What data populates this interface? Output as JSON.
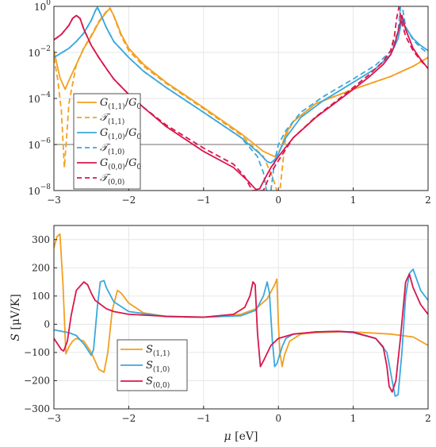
{
  "colors": {
    "orange": "#F2A01F",
    "blue": "#3AA8DE",
    "red": "#D9164C",
    "hline": "#8c8c8c",
    "grid": "#e6e6e6"
  },
  "chart_data": [
    {
      "type": "line",
      "y_scale": "log",
      "xlim": [
        -3,
        2
      ],
      "ylim": [
        1e-08,
        1
      ],
      "grid": true,
      "legend_position": "bottom-left",
      "x_ticks": [
        "−3",
        "−2",
        "−1",
        "0",
        "1",
        "2"
      ],
      "y_ticks": [
        {
          "base": "10",
          "exp": "0"
        },
        {
          "base": "10",
          "exp": "−2"
        },
        {
          "base": "10",
          "exp": "−4"
        },
        {
          "base": "10",
          "exp": "−6"
        },
        {
          "base": "10",
          "exp": "−8"
        }
      ],
      "hline": 1e-06,
      "series": [
        {
          "name": "G_{(1,1)}/G_0",
          "color": "orange",
          "dash": false,
          "x": [
            -3.0,
            -2.92,
            -2.85,
            -2.8,
            -2.7,
            -2.6,
            -2.5,
            -2.4,
            -2.3,
            -2.25,
            -2.2,
            -2.1,
            -2.0,
            -1.8,
            -1.5,
            -1.0,
            -0.5,
            -0.2,
            -0.05,
            0.0,
            0.05,
            0.1,
            0.2,
            0.5,
            1.0,
            1.5,
            1.8,
            2.0
          ],
          "y": [
            0.012,
            0.0008,
            0.00025,
            0.0006,
            0.003,
            0.015,
            0.05,
            0.2,
            0.55,
            0.8,
            0.4,
            0.06,
            0.015,
            0.003,
            0.0005,
            4e-05,
            3e-06,
            5e-07,
            3e-07,
            4e-07,
            1e-06,
            3e-06,
            1e-05,
            6e-05,
            0.00025,
            0.0009,
            0.0025,
            0.006
          ]
        },
        {
          "name": "T_{(1,1)}",
          "color": "orange",
          "dash": true,
          "x": [
            -3.0,
            -2.95,
            -2.9,
            -2.86,
            -2.83,
            -2.8,
            -2.7,
            -2.6,
            -2.5,
            -2.4,
            -2.3,
            -2.25,
            -2.2,
            -2.1,
            -2.0,
            -1.8,
            -1.5,
            -1.0,
            -0.5,
            -0.2,
            -0.08,
            -0.02,
            0.0,
            0.02,
            0.05,
            0.1,
            0.2,
            0.5,
            1.0,
            1.5,
            1.8,
            2.0
          ],
          "y": [
            0.006,
            0.0007,
            3e-05,
            1e-07,
            2e-06,
            6e-05,
            0.003,
            0.016,
            0.055,
            0.22,
            0.6,
            0.85,
            0.38,
            0.05,
            0.012,
            0.0025,
            0.00045,
            3.6e-05,
            2.6e-06,
            3e-07,
            4e-08,
            1e-08,
            1e-08,
            1e-08,
            8e-08,
            2.5e-06,
            1e-05,
            6e-05,
            0.00025,
            0.0009,
            0.0025,
            0.006
          ]
        },
        {
          "name": "G_{(1,0)}/G_0",
          "color": "blue",
          "dash": false,
          "x": [
            -3.0,
            -2.8,
            -2.7,
            -2.6,
            -2.5,
            -2.45,
            -2.42,
            -2.38,
            -2.3,
            -2.2,
            -2.0,
            -1.8,
            -1.5,
            -1.0,
            -0.5,
            -0.25,
            -0.15,
            -0.1,
            -0.05,
            0.0,
            0.1,
            0.3,
            0.6,
            1.0,
            1.3,
            1.5,
            1.6,
            1.65,
            1.7,
            1.8,
            1.9,
            2.0
          ],
          "y": [
            0.006,
            0.015,
            0.03,
            0.07,
            0.25,
            0.6,
            0.9,
            0.5,
            0.12,
            0.03,
            0.006,
            0.0015,
            0.0003,
            2.5e-05,
            2e-06,
            4e-07,
            1.8e-07,
            1.6e-07,
            2.2e-07,
            4e-07,
            2e-06,
            1.5e-05,
            8e-05,
            0.0005,
            0.002,
            0.008,
            0.04,
            0.25,
            0.12,
            0.04,
            0.02,
            0.012
          ]
        },
        {
          "name": "T_{(1,0)}",
          "color": "blue",
          "dash": true,
          "x": [
            -3.0,
            -2.8,
            -2.7,
            -2.6,
            -2.5,
            -2.45,
            -2.42,
            -2.38,
            -2.3,
            -2.2,
            -2.0,
            -1.8,
            -1.5,
            -1.0,
            -0.5,
            -0.28,
            -0.2,
            -0.16,
            -0.13,
            -0.1,
            -0.05,
            0.0,
            0.1,
            0.3,
            0.6,
            1.0,
            1.3,
            1.5,
            1.6,
            1.63,
            1.66,
            1.7,
            1.8,
            1.9,
            2.0
          ],
          "y": [
            0.006,
            0.015,
            0.03,
            0.07,
            0.25,
            0.6,
            0.95,
            0.5,
            0.12,
            0.03,
            0.006,
            0.0015,
            0.0003,
            2.5e-05,
            2e-06,
            3e-07,
            6e-08,
            1e-08,
            1e-08,
            1e-08,
            2e-07,
            1e-06,
            4e-06,
            2.5e-05,
            0.00012,
            0.0007,
            0.0028,
            0.011,
            0.08,
            0.9,
            0.8,
            0.13,
            0.035,
            0.016,
            0.009
          ]
        },
        {
          "name": "G_{(0,0)}/G_0",
          "color": "red",
          "dash": false,
          "x": [
            -3.0,
            -2.9,
            -2.8,
            -2.75,
            -2.7,
            -2.65,
            -2.6,
            -2.5,
            -2.4,
            -2.3,
            -2.2,
            -2.0,
            -1.8,
            -1.5,
            -1.0,
            -0.6,
            -0.4,
            -0.3,
            -0.25,
            -0.2,
            -0.15,
            -0.1,
            0.0,
            0.2,
            0.5,
            0.8,
            1.0,
            1.2,
            1.4,
            1.5,
            1.55,
            1.6,
            1.65,
            1.7,
            1.8,
            1.9,
            2.0
          ],
          "y": [
            0.035,
            0.06,
            0.15,
            0.3,
            0.4,
            0.3,
            0.1,
            0.02,
            0.006,
            0.002,
            0.0007,
            0.00015,
            4e-05,
            6e-06,
            5e-07,
            1e-07,
            2.5e-08,
            1.1e-08,
            1.2e-08,
            2.5e-08,
            5e-08,
            1e-07,
            3e-07,
            2e-06,
            1.5e-05,
            8e-05,
            0.00025,
            0.0008,
            0.003,
            0.008,
            0.02,
            0.08,
            0.4,
            0.1,
            0.015,
            0.005,
            0.002
          ]
        },
        {
          "name": "T_{(0,0)}",
          "color": "red",
          "dash": true,
          "x": [
            -3.0,
            -2.9,
            -2.8,
            -2.75,
            -2.7,
            -2.65,
            -2.6,
            -2.5,
            -2.4,
            -2.3,
            -2.2,
            -2.0,
            -1.8,
            -1.5,
            -1.0,
            -0.6,
            -0.45,
            -0.35,
            -0.3,
            -0.27,
            -0.24,
            -0.2,
            -0.1,
            0.0,
            0.2,
            0.5,
            0.8,
            1.0,
            1.2,
            1.4,
            1.5,
            1.55,
            1.58,
            1.61,
            1.65,
            1.7,
            1.8,
            1.9,
            2.0
          ],
          "y": [
            0.035,
            0.06,
            0.15,
            0.3,
            0.4,
            0.3,
            0.1,
            0.02,
            0.006,
            0.002,
            0.0007,
            0.00015,
            4e-05,
            7e-06,
            7e-07,
            1.4e-07,
            4e-08,
            1e-08,
            1e-08,
            1e-08,
            1e-08,
            1e-08,
            6e-08,
            2e-07,
            2e-06,
            1.6e-05,
            9e-05,
            0.0003,
            0.001,
            0.004,
            0.012,
            0.05,
            0.3,
            0.9,
            0.2,
            0.05,
            0.012,
            0.0045,
            0.002
          ]
        }
      ]
    },
    {
      "type": "line",
      "xlim": [
        -3,
        2
      ],
      "ylim": [
        -300,
        350
      ],
      "grid": true,
      "legend_position": "bottom-left",
      "xlabel": {
        "var": "μ",
        "unit": "[eV]"
      },
      "ylabel": {
        "var": "S",
        "unit": "[μV/K]"
      },
      "x_ticks": [
        "−3",
        "−2",
        "−1",
        "0",
        "1",
        "2"
      ],
      "y_ticks": [
        "300",
        "200",
        "100",
        "0",
        "−100",
        "−200",
        "−300"
      ],
      "y_tick_values": [
        300,
        200,
        100,
        0,
        -100,
        -200,
        -300
      ],
      "series": [
        {
          "name": "S_{(1,1)}",
          "color": "orange",
          "dash": false,
          "x": [
            -3.0,
            -2.96,
            -2.92,
            -2.88,
            -2.84,
            -2.8,
            -2.75,
            -2.7,
            -2.6,
            -2.5,
            -2.4,
            -2.33,
            -2.28,
            -2.22,
            -2.15,
            -2.1,
            -2.0,
            -1.8,
            -1.5,
            -1.2,
            -1.0,
            -0.8,
            -0.5,
            -0.3,
            -0.15,
            -0.05,
            -0.02,
            0.0,
            0.02,
            0.05,
            0.08,
            0.15,
            0.3,
            0.5,
            0.8,
            1.0,
            1.5,
            1.8,
            2.0
          ],
          "y": [
            270,
            310,
            320,
            150,
            -105,
            -80,
            -60,
            -50,
            -60,
            -100,
            -160,
            -170,
            -100,
            50,
            120,
            110,
            75,
            40,
            28,
            25,
            25,
            27,
            35,
            55,
            90,
            140,
            160,
            0,
            -100,
            -150,
            -110,
            -60,
            -35,
            -30,
            -27,
            -27,
            -35,
            -45,
            -75
          ]
        },
        {
          "name": "S_{(1,0)}",
          "color": "blue",
          "dash": false,
          "x": [
            -3.0,
            -2.9,
            -2.8,
            -2.7,
            -2.6,
            -2.5,
            -2.47,
            -2.42,
            -2.38,
            -2.33,
            -2.3,
            -2.2,
            -2.0,
            -1.5,
            -1.0,
            -0.5,
            -0.3,
            -0.2,
            -0.15,
            -0.12,
            -0.08,
            -0.05,
            -0.02,
            0.05,
            0.1,
            0.2,
            0.5,
            0.8,
            1.0,
            1.3,
            1.45,
            1.52,
            1.56,
            1.6,
            1.65,
            1.7,
            1.75,
            1.8,
            1.9,
            2.0
          ],
          "y": [
            -20,
            -25,
            -30,
            -40,
            -70,
            -110,
            -90,
            60,
            150,
            155,
            130,
            80,
            45,
            27,
            25,
            30,
            50,
            100,
            150,
            110,
            -60,
            -150,
            -140,
            -80,
            -50,
            -35,
            -27,
            -25,
            -30,
            -50,
            -100,
            -200,
            -255,
            -250,
            -100,
            100,
            180,
            195,
            120,
            85
          ]
        },
        {
          "name": "S_{(0,0)}",
          "color": "red",
          "dash": false,
          "x": [
            -3.0,
            -2.95,
            -2.9,
            -2.87,
            -2.82,
            -2.77,
            -2.7,
            -2.6,
            -2.55,
            -2.5,
            -2.45,
            -2.3,
            -2.2,
            -2.0,
            -1.5,
            -1.0,
            -0.6,
            -0.45,
            -0.38,
            -0.34,
            -0.31,
            -0.28,
            -0.24,
            -0.2,
            -0.1,
            0.0,
            0.2,
            0.5,
            0.8,
            1.0,
            1.3,
            1.4,
            1.45,
            1.48,
            1.52,
            1.57,
            1.63,
            1.7,
            1.75,
            1.8,
            1.9,
            2.0
          ],
          "y": [
            -50,
            -70,
            -90,
            -95,
            -60,
            30,
            120,
            150,
            140,
            110,
            85,
            55,
            45,
            35,
            28,
            25,
            35,
            60,
            100,
            150,
            140,
            -30,
            -150,
            -130,
            -75,
            -50,
            -35,
            -27,
            -25,
            -28,
            -50,
            -80,
            -150,
            -220,
            -240,
            -200,
            -50,
            150,
            178,
            130,
            70,
            35
          ]
        }
      ]
    }
  ]
}
